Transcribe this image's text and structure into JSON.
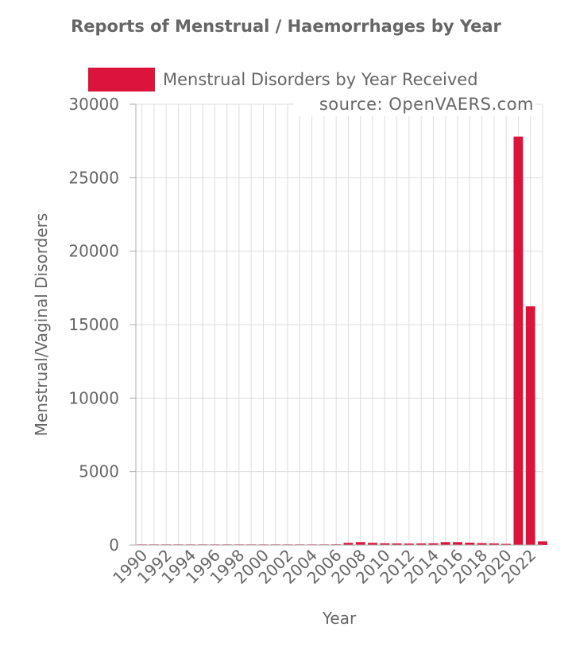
{
  "chart_data": {
    "type": "bar",
    "title": "Reports of Menstrual / Haemorrhages by Year",
    "source_note": "source: OpenVAERS.com",
    "xlabel": "Year",
    "ylabel": "Menstrual/Vaginal Disorders",
    "ylim": [
      0,
      30000
    ],
    "y_ticks": [
      "0",
      "5000",
      "10000",
      "15000",
      "20000",
      "25000",
      "30000"
    ],
    "y_tick_values": [
      0,
      5000,
      10000,
      15000,
      20000,
      25000,
      30000
    ],
    "x_tick_labels": [
      "1990",
      "1992",
      "1994",
      "1996",
      "1998",
      "2000",
      "2002",
      "2004",
      "2006",
      "2008",
      "2010",
      "2012",
      "2014",
      "2016",
      "2018",
      "2020",
      "2022"
    ],
    "categories": [
      "1990",
      "1991",
      "1992",
      "1993",
      "1994",
      "1995",
      "1996",
      "1997",
      "1998",
      "1999",
      "2000",
      "2001",
      "2002",
      "2003",
      "2004",
      "2005",
      "2006",
      "2007",
      "2008",
      "2009",
      "2010",
      "2011",
      "2012",
      "2013",
      "2014",
      "2015",
      "2016",
      "2017",
      "2018",
      "2019",
      "2020",
      "2021",
      "2022",
      "2023"
    ],
    "series": [
      {
        "name": "Menstrual Disorders by Year Received",
        "color": "#dc143c",
        "values": [
          5,
          5,
          5,
          5,
          5,
          5,
          5,
          5,
          5,
          5,
          10,
          10,
          10,
          20,
          25,
          30,
          50,
          150,
          200,
          150,
          120,
          110,
          100,
          110,
          120,
          200,
          200,
          160,
          130,
          110,
          80,
          27800,
          16250,
          250
        ]
      }
    ],
    "legend_position": "top",
    "grid": true
  }
}
